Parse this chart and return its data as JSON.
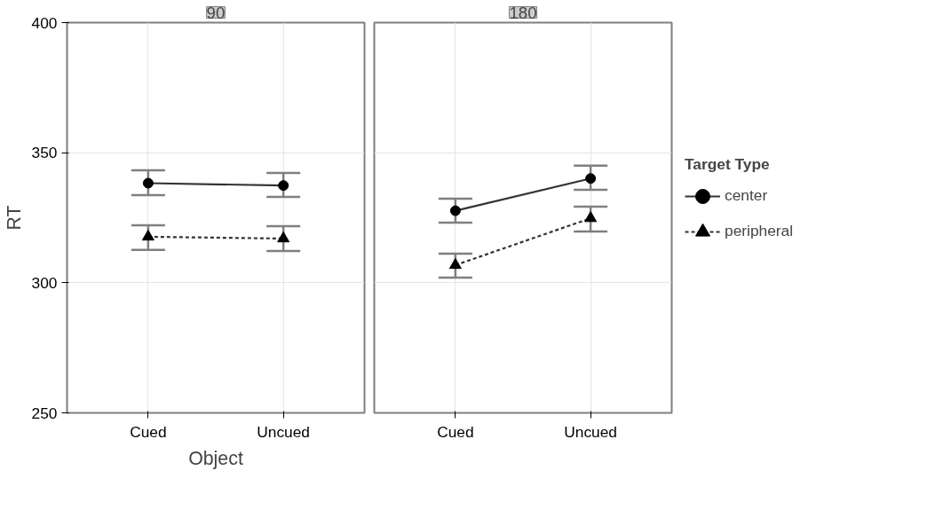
{
  "chart_data": [
    {
      "type": "line",
      "title": "90",
      "xlabel": "Object",
      "ylabel": "RT",
      "categories": [
        "Cued",
        "Uncued"
      ],
      "ylim": [
        250,
        400
      ],
      "yticks": [
        250,
        300,
        350,
        400
      ],
      "grid": true,
      "series": [
        {
          "color": "#333333",
          "marker": "circle",
          "line_style": "solid",
          "values": [
            338.3,
            337.4
          ],
          "errors": [
            [
              333.7,
              343.2
            ],
            [
              333.0,
              342.2
            ]
          ]
        },
        {
          "color": "#333333",
          "marker": "triangle",
          "line_style": "dashed",
          "values": [
            317.7,
            317.0
          ],
          "errors": [
            [
              312.6,
              322.1
            ],
            [
              312.2,
              321.8
            ]
          ]
        }
      ]
    },
    {
      "type": "line",
      "title": "180",
      "categories": [
        "Cued",
        "Uncued"
      ],
      "ylim": [
        250,
        400
      ],
      "yticks": [
        250,
        300,
        350,
        400
      ],
      "grid": true,
      "tick_labels": "x",
      "legend": "right",
      "legend_title": "Target Type",
      "series": [
        {
          "name": "center",
          "color": "#333333",
          "marker": "circle",
          "line_style": "solid",
          "values": [
            327.7,
            340.1
          ],
          "errors": [
            [
              323.1,
              332.3
            ],
            [
              335.7,
              345.0
            ]
          ]
        },
        {
          "name": "peripheral",
          "color": "#333333",
          "marker": "triangle",
          "line_style": "dashed",
          "values": [
            306.8,
            324.8
          ],
          "errors": [
            [
              302.0,
              311.2
            ],
            [
              319.7,
              329.3
            ]
          ]
        }
      ]
    }
  ]
}
